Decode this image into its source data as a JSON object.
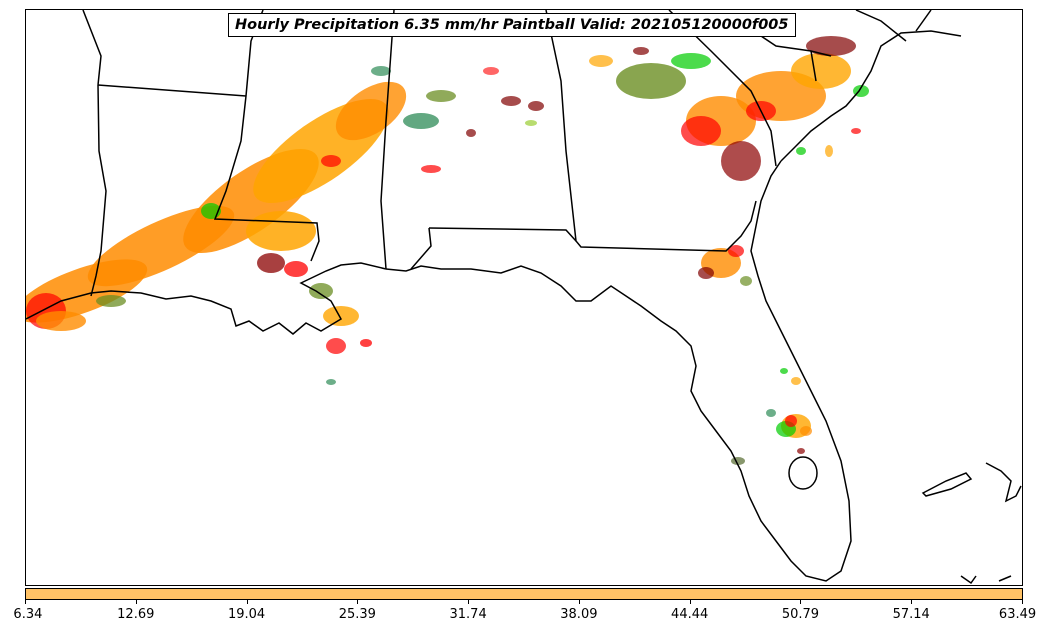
{
  "title": "Hourly Precipitation 6.35 mm/hr Paintball Valid: 202105120000f005",
  "colorbar": {
    "color": "#ffc266",
    "tick_labels": [
      "6.34",
      "12.69",
      "19.04",
      "25.39",
      "31.74",
      "38.09",
      "44.44",
      "50.79",
      "57.14",
      "63.49"
    ]
  },
  "paintball_colors": [
    "#ff8c00",
    "#ffa500",
    "#ff0000",
    "#8b0000",
    "#6b8e23",
    "#9acd32",
    "#2e8b57",
    "#00cc00",
    "#556b2f",
    "#800000",
    "#ff6347"
  ],
  "boundary_color": "#000000"
}
